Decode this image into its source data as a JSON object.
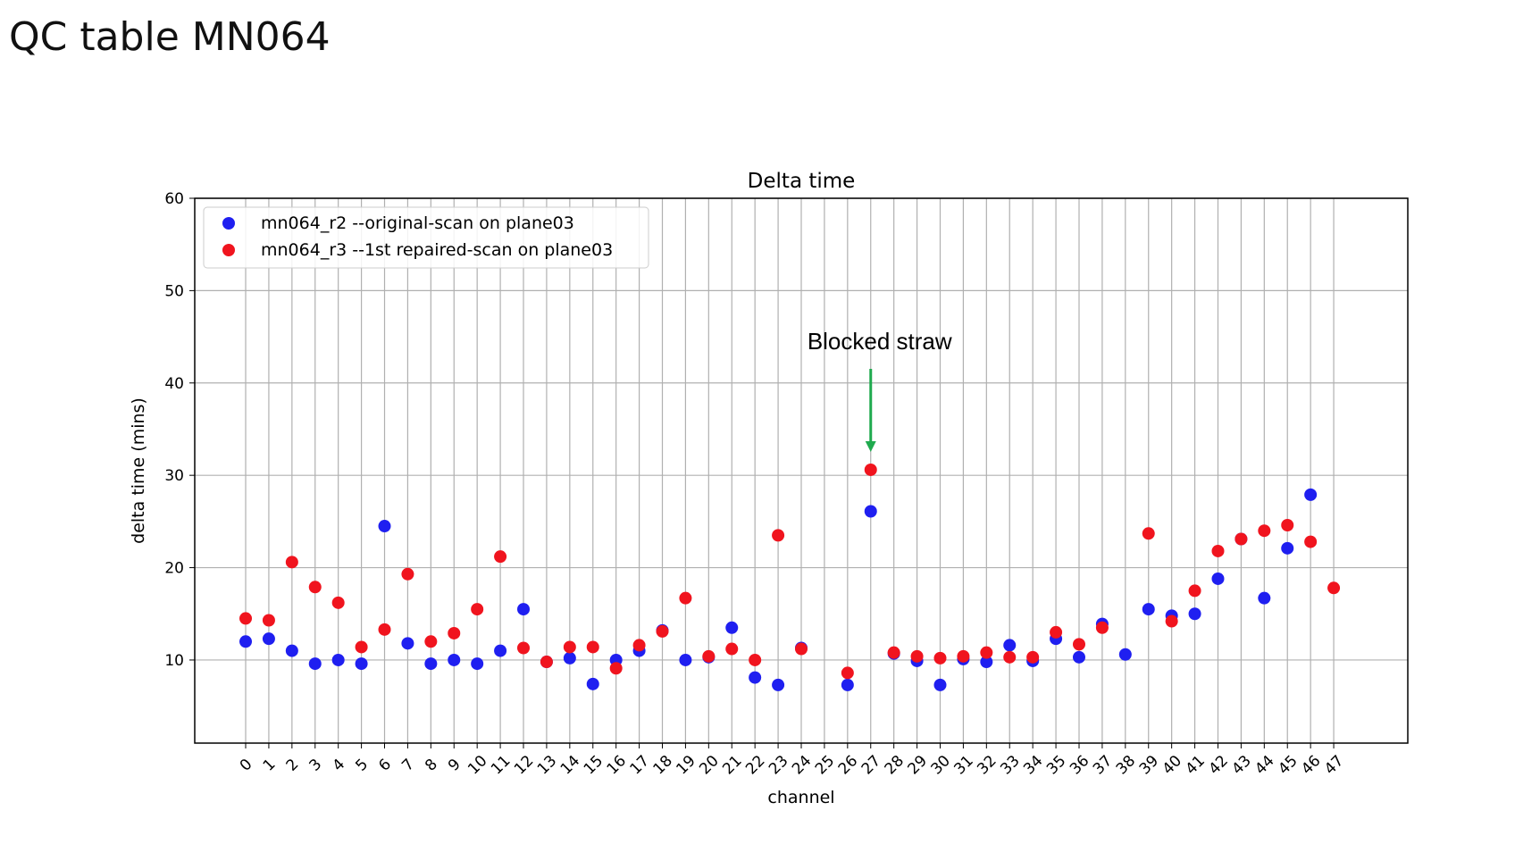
{
  "slide": {
    "title": "QC table MN064"
  },
  "chart_data": {
    "type": "scatter",
    "title": "Delta time",
    "xlabel": "channel",
    "ylabel": "delta time (mins)",
    "xlim": [
      -2.2,
      50.2
    ],
    "ylim": [
      1,
      60
    ],
    "yticks": [
      10,
      20,
      30,
      40,
      50,
      60
    ],
    "x": [
      0,
      1,
      2,
      3,
      4,
      5,
      6,
      7,
      8,
      9,
      10,
      11,
      12,
      13,
      14,
      15,
      16,
      17,
      18,
      19,
      20,
      21,
      22,
      23,
      24,
      25,
      26,
      27,
      28,
      29,
      30,
      31,
      32,
      33,
      34,
      35,
      36,
      37,
      38,
      39,
      40,
      41,
      42,
      43,
      44,
      45,
      46,
      47
    ],
    "grid": true,
    "legend_position": "top-left",
    "series": [
      {
        "name": "mn064_r2 --original-scan on plane03",
        "color": "#1f1ff0",
        "x": [
          0,
          1,
          2,
          3,
          4,
          5,
          6,
          7,
          8,
          9,
          10,
          11,
          12,
          13,
          14,
          15,
          16,
          17,
          18,
          19,
          20,
          21,
          22,
          23,
          24,
          26,
          27,
          28,
          29,
          30,
          31,
          32,
          33,
          34,
          35,
          36,
          37,
          38,
          39,
          40,
          41,
          42,
          43,
          44,
          45,
          46
        ],
        "y": [
          12.0,
          12.3,
          11.0,
          9.6,
          10.0,
          9.6,
          24.5,
          11.8,
          9.6,
          10.0,
          9.6,
          11.0,
          15.5,
          9.8,
          10.2,
          7.4,
          10.0,
          11.0,
          13.2,
          10.0,
          10.3,
          13.5,
          8.1,
          7.3,
          11.3,
          7.3,
          26.1,
          10.7,
          9.9,
          7.3,
          10.1,
          9.8,
          11.6,
          9.9,
          12.3,
          10.3,
          13.9,
          10.6,
          15.5,
          14.8,
          15.0,
          18.8,
          23.1,
          16.7,
          22.1,
          27.9
        ]
      },
      {
        "name": "mn064_r3 --1st repaired-scan on plane03",
        "color": "#f0141e",
        "x": [
          0,
          1,
          2,
          3,
          4,
          5,
          6,
          7,
          8,
          9,
          10,
          11,
          12,
          13,
          14,
          15,
          16,
          17,
          18,
          19,
          20,
          21,
          22,
          23,
          24,
          26,
          27,
          28,
          29,
          30,
          31,
          32,
          33,
          34,
          35,
          36,
          37,
          39,
          40,
          41,
          42,
          43,
          44,
          45,
          46,
          47
        ],
        "y": [
          14.5,
          14.3,
          20.6,
          17.9,
          16.2,
          11.4,
          13.3,
          19.3,
          12.0,
          12.9,
          15.5,
          21.2,
          11.3,
          9.8,
          11.4,
          11.4,
          9.1,
          11.6,
          13.1,
          16.7,
          10.4,
          11.2,
          10.0,
          23.5,
          11.2,
          8.6,
          30.6,
          10.8,
          10.4,
          10.2,
          10.4,
          10.8,
          10.3,
          10.3,
          13.0,
          11.7,
          13.5,
          23.7,
          14.2,
          17.5,
          21.8,
          23.1,
          24.0,
          24.6,
          22.8,
          17.8
        ]
      }
    ],
    "annotation": {
      "text": "Blocked straw",
      "points_to_channel": 27,
      "arrow_color": "#1faa4e"
    }
  }
}
